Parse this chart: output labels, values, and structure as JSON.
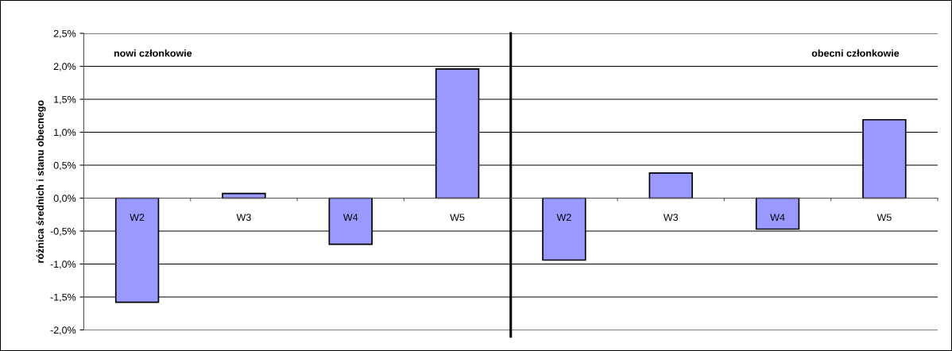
{
  "chart_data": [
    {
      "type": "bar",
      "ylabel": "różnica średnich i stanu obecnego",
      "categories": [
        "W2",
        "W3",
        "W4",
        "W5"
      ],
      "values": [
        -1.58,
        0.07,
        -0.7,
        1.96
      ],
      "color": "#9999ff",
      "ylim": [
        -2.0,
        2.5
      ],
      "yticks": [
        {
          "value": -2.0,
          "label": "-2,0%"
        },
        {
          "value": -1.5,
          "label": "-1,5%"
        },
        {
          "value": -1.0,
          "label": "-1,0%"
        },
        {
          "value": -0.5,
          "label": "-0,5%"
        },
        {
          "value": 0.0,
          "label": "0,0%"
        },
        {
          "value": 0.5,
          "label": "0,5%"
        },
        {
          "value": 1.0,
          "label": "1,0%"
        },
        {
          "value": 1.5,
          "label": "1,5%"
        },
        {
          "value": 2.0,
          "label": "2,0%"
        },
        {
          "value": 2.5,
          "label": "2,5%"
        }
      ],
      "grid": "y",
      "annotations": [
        "nowi członkowie"
      ]
    },
    {
      "type": "bar",
      "categories": [
        "W2",
        "W3",
        "W4",
        "W5"
      ],
      "values": [
        -0.94,
        0.38,
        -0.47,
        1.19
      ],
      "color": "#9999ff",
      "ylim": [
        -2.0,
        2.5
      ],
      "yticks": [
        -2.0,
        -1.5,
        -1.0,
        -0.5,
        0.0,
        0.5,
        1.0,
        1.5,
        2.0,
        2.5
      ],
      "grid": "y",
      "tick_labels": "x",
      "annotations": [
        "obecni członkowie"
      ]
    }
  ]
}
